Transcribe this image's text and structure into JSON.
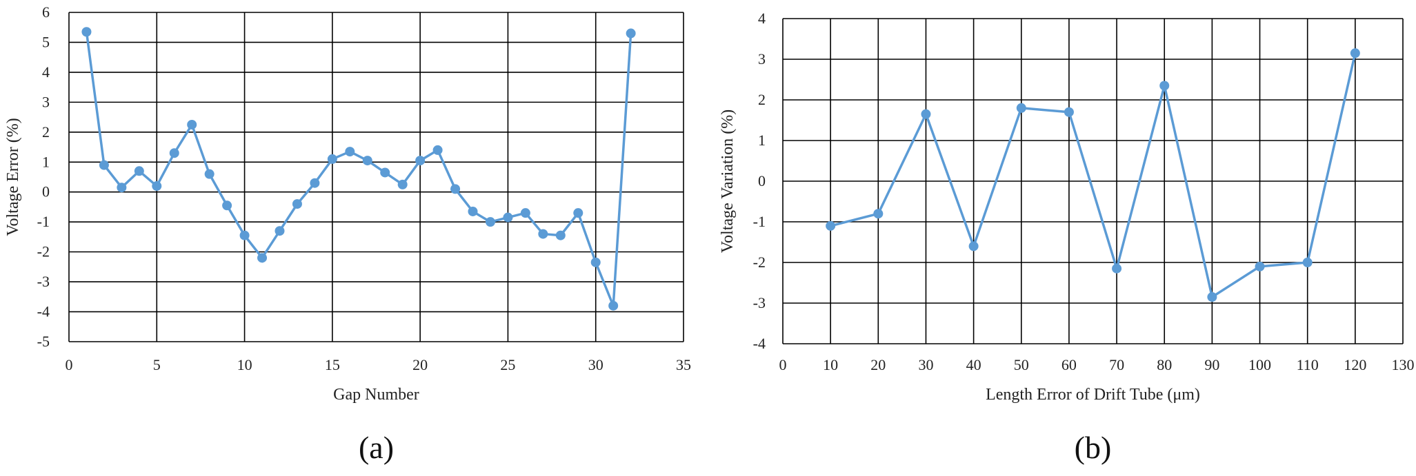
{
  "chart_data": [
    {
      "type": "line",
      "caption": "(a)",
      "xlabel": "Gap Number",
      "ylabel": "Voltage Error (%)",
      "xlim": [
        0,
        35
      ],
      "ylim": [
        -5,
        6
      ],
      "xticks": [
        0,
        5,
        10,
        15,
        20,
        25,
        30,
        35
      ],
      "yticks": [
        -5,
        -4,
        -3,
        -2,
        -1,
        0,
        1,
        2,
        3,
        4,
        5,
        6
      ],
      "grid": true,
      "color": "#5b9bd5",
      "x": [
        1,
        2,
        3,
        4,
        5,
        6,
        7,
        8,
        9,
        10,
        11,
        12,
        13,
        14,
        15,
        16,
        17,
        18,
        19,
        20,
        21,
        22,
        23,
        24,
        25,
        26,
        27,
        28,
        29,
        30,
        31,
        32
      ],
      "y": [
        5.35,
        0.9,
        0.15,
        0.7,
        0.2,
        1.3,
        2.25,
        0.6,
        -0.45,
        -1.45,
        -2.2,
        -1.3,
        -0.4,
        0.3,
        1.1,
        1.35,
        1.05,
        0.65,
        0.25,
        1.05,
        1.4,
        0.1,
        -0.65,
        -1.0,
        -0.85,
        -0.7,
        -1.4,
        -1.45,
        -0.7,
        -2.35,
        -3.8,
        5.3
      ]
    },
    {
      "type": "line",
      "caption": "(b)",
      "xlabel": "Length Error  of Drift Tube (μm)",
      "ylabel": "Voltage  Variation  (%)",
      "xlim": [
        0,
        130
      ],
      "ylim": [
        -4,
        4
      ],
      "xticks": [
        0,
        10,
        20,
        30,
        40,
        50,
        60,
        70,
        80,
        90,
        100,
        110,
        120,
        130
      ],
      "yticks": [
        -4,
        -3,
        -2,
        -1,
        0,
        1,
        2,
        3,
        4
      ],
      "grid": true,
      "color": "#5b9bd5",
      "x": [
        10,
        20,
        30,
        40,
        50,
        60,
        70,
        80,
        90,
        100,
        110,
        120
      ],
      "y": [
        -1.1,
        -0.8,
        1.65,
        -1.6,
        1.8,
        1.7,
        -2.15,
        2.35,
        -2.85,
        -2.1,
        -2.0,
        3.15
      ]
    }
  ]
}
